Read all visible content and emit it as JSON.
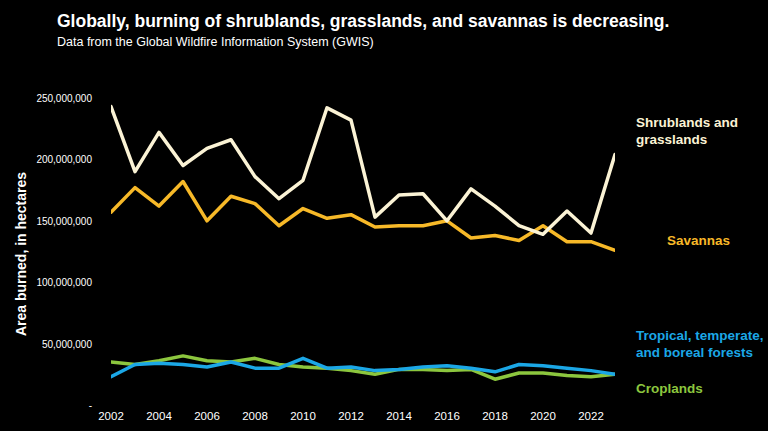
{
  "chart_data": {
    "type": "line",
    "title": "Globally, burning of shrublands, grasslands, and savannas is decreasing.",
    "subtitle": "Data from the Global Wildfire Information System (GWIS)",
    "y_label": "Area burned, in hectares",
    "x": [
      2002,
      2003,
      2004,
      2005,
      2006,
      2007,
      2008,
      2009,
      2010,
      2011,
      2012,
      2013,
      2014,
      2015,
      2016,
      2017,
      2018,
      2019,
      2020,
      2021,
      2022,
      2023
    ],
    "series": [
      {
        "name": "Shrublands and grasslands",
        "color": "#fbf3d5",
        "values": [
          243000000,
          190000000,
          222000000,
          195000000,
          209000000,
          216000000,
          186000000,
          168000000,
          183000000,
          242000000,
          232000000,
          153000000,
          171000000,
          172000000,
          150000000,
          176000000,
          162000000,
          146000000,
          139000000,
          158000000,
          140000000,
          204000000
        ]
      },
      {
        "name": "Savannas",
        "color": "#f7b928",
        "values": [
          157000000,
          177000000,
          162000000,
          182000000,
          150000000,
          170000000,
          164000000,
          146000000,
          160000000,
          152000000,
          155000000,
          145000000,
          146000000,
          146000000,
          150000000,
          136000000,
          138000000,
          134000000,
          146000000,
          133000000,
          133000000,
          126000000
        ]
      },
      {
        "name": "Tropical, temperate, and boreal forests",
        "color": "#1ba7e6",
        "values": [
          23000000,
          33000000,
          34000000,
          33000000,
          31000000,
          35000000,
          30000000,
          30000000,
          38000000,
          30000000,
          31000000,
          28000000,
          29000000,
          31000000,
          32000000,
          30000000,
          27000000,
          33000000,
          32000000,
          30000000,
          28000000,
          25000000
        ]
      },
      {
        "name": "Croplands",
        "color": "#8cc63e",
        "values": [
          35000000,
          33000000,
          36000000,
          40000000,
          36000000,
          35000000,
          38000000,
          33000000,
          31000000,
          30000000,
          28000000,
          25000000,
          29000000,
          29000000,
          28000000,
          29000000,
          21000000,
          26000000,
          26000000,
          24000000,
          23000000,
          25000000
        ]
      }
    ],
    "xlim": [
      2002,
      2023
    ],
    "xticks": [
      2002,
      2004,
      2006,
      2008,
      2010,
      2012,
      2014,
      2016,
      2018,
      2020,
      2022
    ],
    "ylim": [
      0,
      250000000
    ],
    "yticks": [
      {
        "value": 0,
        "label": "-"
      },
      {
        "value": 50000000,
        "label": "50,000,000"
      },
      {
        "value": 100000000,
        "label": "100,000,000"
      },
      {
        "value": 150000000,
        "label": "150,000,000"
      },
      {
        "value": 200000000,
        "label": "200,000,000"
      },
      {
        "value": 250000000,
        "label": "250,000,000"
      }
    ],
    "grid": false
  }
}
